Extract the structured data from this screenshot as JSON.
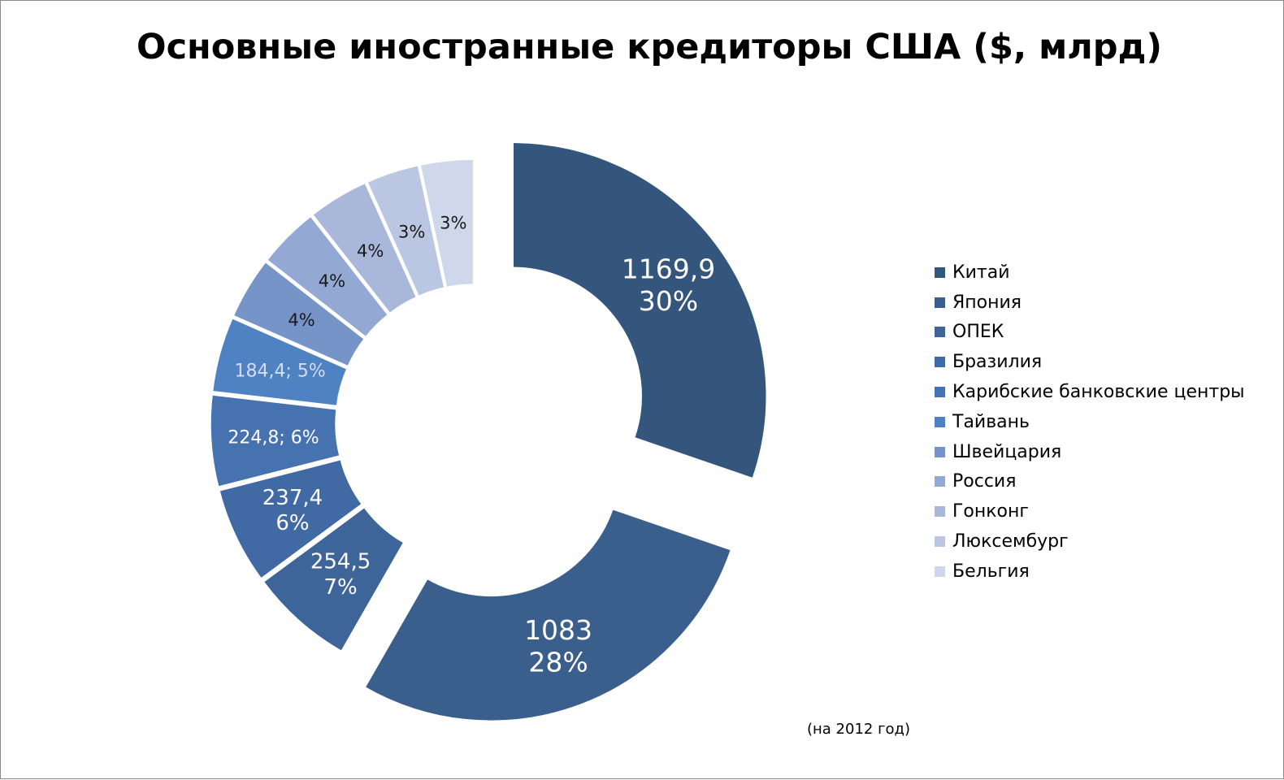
{
  "chart_data": {
    "type": "pie",
    "variant": "doughnut",
    "title": "Основные иностранные кредиторы США ($, млрд)",
    "note": "(на 2012 год)",
    "legend_position": "right",
    "categories": [
      "Китай",
      "Япония",
      "ОПЕК",
      "Бразилия",
      "Карибские банковские центры",
      "Тайвань",
      "Швейцария",
      "Россия",
      "Гонконг",
      "Люксембург",
      "Бельгия"
    ],
    "values": [
      1169.9,
      1083,
      254.5,
      237.4,
      224.8,
      184.4,
      152,
      150,
      149,
      130,
      130
    ],
    "data_labels": [
      "1169,9\n30%",
      "1083\n28%",
      "254,5\n7%",
      "237,4\n6%",
      "224,8; 6%",
      "184,4; 5%",
      "4%",
      "4%",
      "4%",
      "3%",
      "3%"
    ],
    "colors": [
      "#34567D",
      "#3B5F8D",
      "#3E659A",
      "#4169A4",
      "#4672AF",
      "#4F82C3",
      "#7694C8",
      "#93A8D3",
      "#A9B8DA",
      "#BBC7E2",
      "#CFD8EA"
    ],
    "label_colors": [
      "#FFFFFF",
      "#FFFFFF",
      "#FFFFFF",
      "#FFFFFF",
      "#FFFFFF",
      "#D6DDF0",
      "#1A1A1A",
      "#1A1A1A",
      "#1A1A1A",
      "#1A1A1A",
      "#1A1A1A"
    ]
  }
}
